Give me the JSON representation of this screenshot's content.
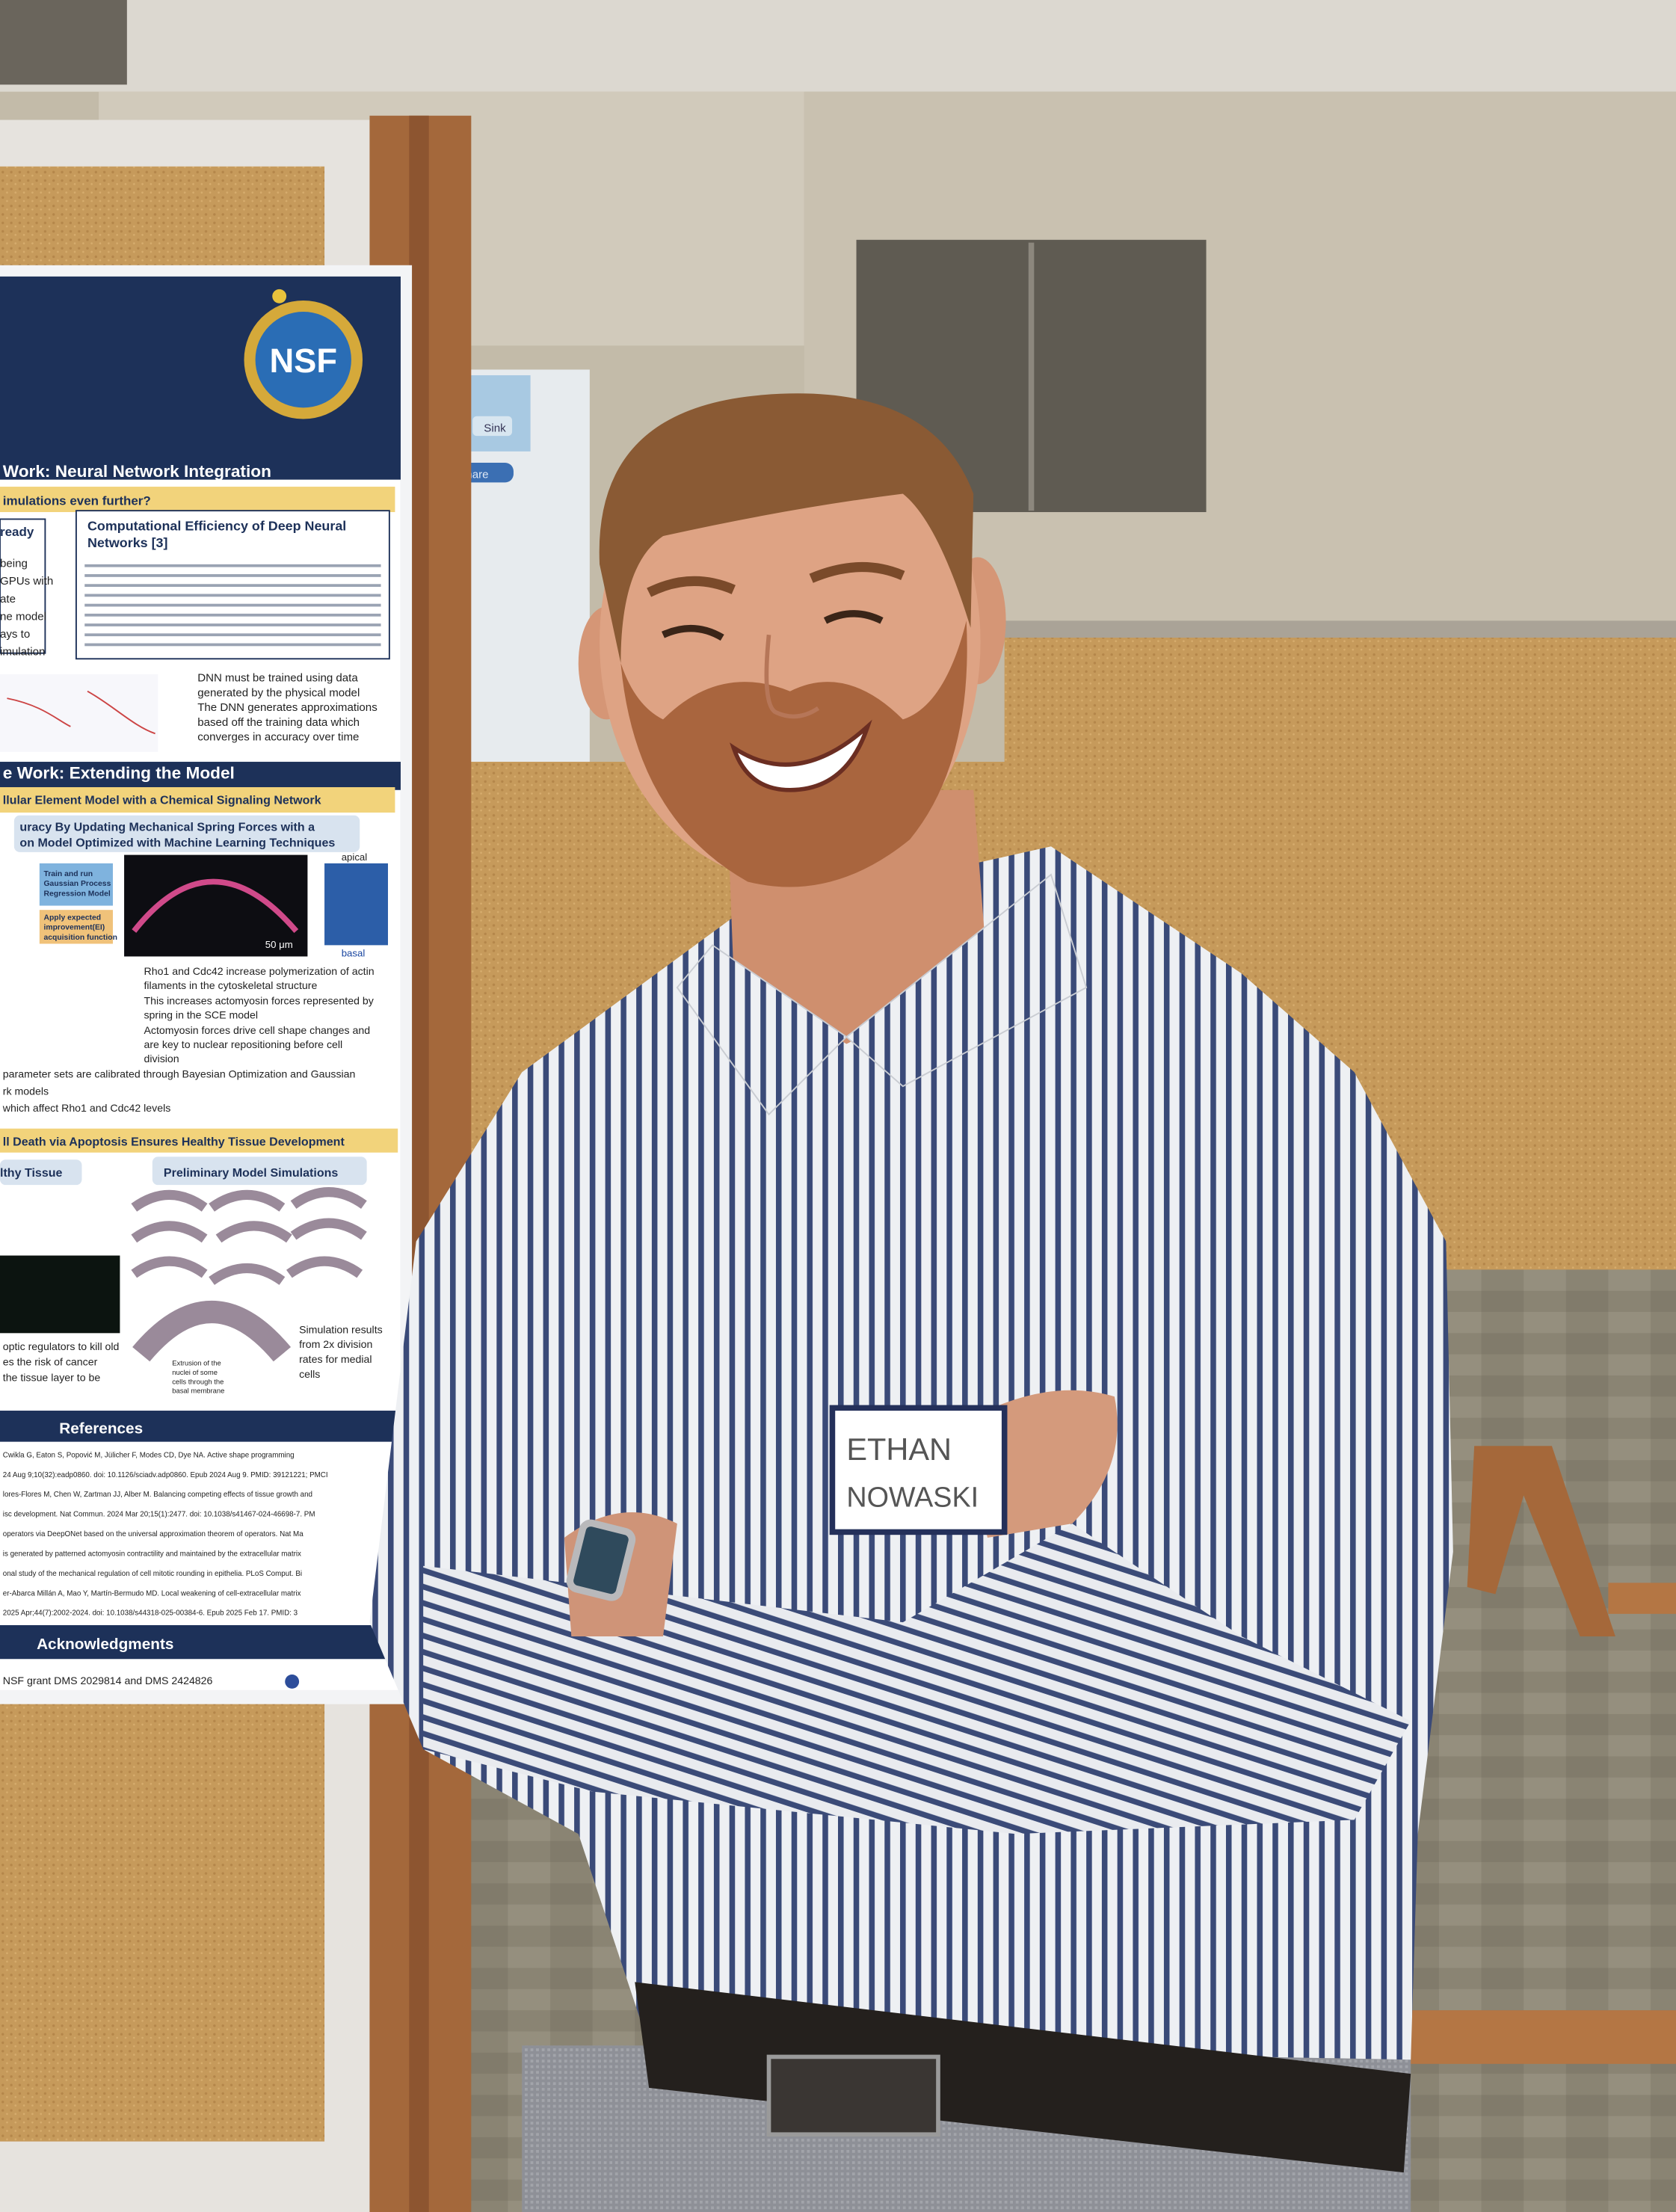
{
  "poster": {
    "logo": "NSF",
    "section_1": {
      "title": "Work: Neural Network Integration",
      "question": "imulations even further?",
      "left_box_title": "ready",
      "left_box_lines": [
        "being",
        "GPUs with",
        "ate",
        "ne model",
        "ays to",
        "imulation"
      ],
      "table_title": [
        "Computational Efficiency of Deep Neural",
        "Networks [3]"
      ],
      "bullets": [
        [
          "DNN must be trained using data",
          "generated by the physical model"
        ],
        [
          "The DNN generates approximations",
          "based off the training data which",
          "converges in accuracy over time"
        ]
      ]
    },
    "section_2": {
      "title": "e Work: Extending the Model",
      "subtitle": "llular Element Model with a Chemical Signaling Network",
      "box_title": [
        "uracy By Updating Mechanical Spring Forces with a",
        "on Model Optimized with Machine Learning Techniques"
      ],
      "flow_1": [
        "Train and run",
        "Gaussian Process",
        "Regression Model"
      ],
      "flow_2": [
        "Apply expected",
        "improvement(EI)",
        "acquisition function"
      ],
      "scale": "50 μm",
      "apical": "apical",
      "basal": "basal",
      "bullets": [
        [
          "Rho1 and Cdc42 increase polymerization of actin",
          "filaments in the cytoskeletal structure"
        ],
        [
          "This increases actomyosin forces represented by",
          "spring in the SCE model"
        ],
        [
          "Actomyosin forces drive cell shape changes and",
          "are key to nuclear repositioning before cell",
          "division"
        ]
      ],
      "tail": [
        "parameter sets are calibrated through Bayesian Optimization and Gaussian",
        "rk models",
        "which affect Rho1 and Cdc42 levels"
      ]
    },
    "section_3": {
      "title": "ll Death via Apoptosis Ensures Healthy Tissue Development",
      "left_title": "lthy Tissue",
      "right_title": "Preliminary Model Simulations",
      "left_lines": [
        "optic regulators to kill old",
        "es the risk of cancer",
        "the tissue layer to be"
      ],
      "callout": [
        "Extrusion of the",
        "nuclei of some",
        "cells through the",
        "basal membrane"
      ],
      "result": [
        "Simulation results",
        "from 2x division",
        "rates for medial",
        "cells"
      ]
    },
    "references": {
      "title": "References",
      "lines": [
        "Cwikla G, Eaton S, Popović M, Jülicher F, Modes CD, Dye NA. Active shape programming",
        "24 Aug 9;10(32):eadp0860. doi: 10.1126/sciadv.adp0860. Epub 2024 Aug 9. PMID: 39121221; PMCI",
        "lores-Flores M, Chen W, Zartman JJ, Alber M. Balancing competing effects of tissue growth and",
        "isc development. Nat Commun. 2024 Mar 20;15(1):2477. doi: 10.1038/s41467-024-46698-7. PM",
        "operators via DeepONet based on the universal approximation theorem of operators. Nat Ma",
        "is generated by patterned actomyosin contractility and maintained by the extracellular matrix",
        "onal study of the mechanical regulation of cell mitotic rounding in epithelia. PLoS Comput. Bi",
        "er-Abarca Millán A, Mao Y, Martín-Bermudo MD. Local weakening of cell-extracellular matrix",
        "2025 Apr;44(7):2002-2024. doi: 10.1038/s44318-025-00384-6. Epub 2025 Feb 17. PMID: 3"
      ]
    },
    "acknowledgments": {
      "title": "Acknowledgments",
      "text": "NSF grant DMS 2029814 and DMS 2424826"
    }
  },
  "name_tag": {
    "first": "ETHAN",
    "last": "NOWASKI"
  },
  "screen": {
    "button_1": "Sink",
    "button_2": "Share"
  }
}
